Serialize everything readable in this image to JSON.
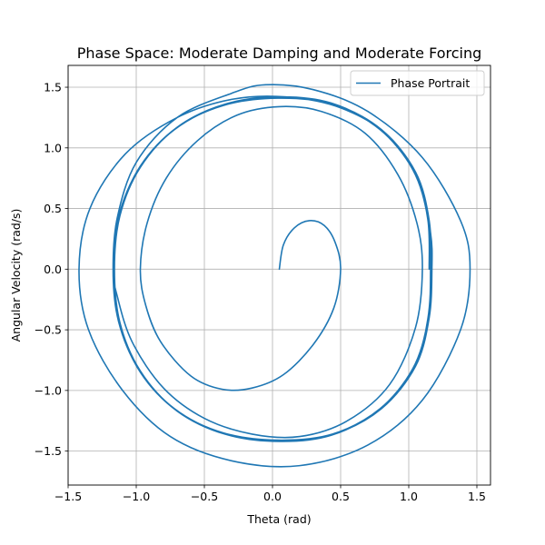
{
  "chart_data": {
    "type": "line",
    "title": "Phase Space: Moderate Damping and Moderate Forcing",
    "xlabel": "Theta (rad)",
    "ylabel": "Angular Velocity (rad/s)",
    "xlim": [
      -1.5,
      1.6
    ],
    "ylim": [
      -1.78,
      1.68
    ],
    "xticks": [
      -1.5,
      -1.0,
      -0.5,
      0.0,
      0.5,
      1.0,
      1.5
    ],
    "xtick_labels": [
      "−1.5",
      "−1.0",
      "−0.5",
      "0.0",
      "0.5",
      "1.0",
      "1.5"
    ],
    "yticks": [
      -1.5,
      -1.0,
      -0.5,
      0.0,
      0.5,
      1.0,
      1.5
    ],
    "ytick_labels": [
      "−1.5",
      "−1.0",
      "−0.5",
      "0.0",
      "0.5",
      "1.0",
      "1.5"
    ],
    "grid": true,
    "legend_position": "top-right",
    "color": "#1f77b4",
    "series": [
      {
        "name": "Phase Portrait",
        "points": [
          [
            0.05,
            0.0
          ],
          [
            0.08,
            0.2
          ],
          [
            0.16,
            0.34
          ],
          [
            0.27,
            0.4
          ],
          [
            0.38,
            0.36
          ],
          [
            0.46,
            0.22
          ],
          [
            0.5,
            0.0
          ],
          [
            0.45,
            -0.32
          ],
          [
            0.3,
            -0.62
          ],
          [
            0.08,
            -0.87
          ],
          [
            -0.15,
            -0.98
          ],
          [
            -0.37,
            -0.99
          ],
          [
            -0.6,
            -0.88
          ],
          [
            -0.82,
            -0.6
          ],
          [
            -0.93,
            -0.3
          ],
          [
            -0.97,
            0.0
          ],
          [
            -0.92,
            0.38
          ],
          [
            -0.78,
            0.75
          ],
          [
            -0.55,
            1.06
          ],
          [
            -0.26,
            1.27
          ],
          [
            0.05,
            1.34
          ],
          [
            0.36,
            1.3
          ],
          [
            0.68,
            1.12
          ],
          [
            0.92,
            0.78
          ],
          [
            1.06,
            0.38
          ],
          [
            1.1,
            0.0
          ],
          [
            1.05,
            -0.48
          ],
          [
            0.86,
            -0.95
          ],
          [
            0.55,
            -1.25
          ],
          [
            0.2,
            -1.38
          ],
          [
            -0.15,
            -1.36
          ],
          [
            -0.5,
            -1.23
          ],
          [
            -0.8,
            -0.98
          ],
          [
            -1.03,
            -0.6
          ],
          [
            -1.14,
            -0.22
          ],
          [
            -1.17,
            0.0
          ],
          [
            -1.14,
            0.42
          ],
          [
            -1.0,
            0.88
          ],
          [
            -0.7,
            1.25
          ],
          [
            -0.3,
            1.45
          ],
          [
            -0.05,
            1.52
          ],
          [
            0.3,
            1.48
          ],
          [
            0.7,
            1.3
          ],
          [
            1.1,
            0.92
          ],
          [
            1.38,
            0.4
          ],
          [
            1.45,
            0.0
          ],
          [
            1.38,
            -0.5
          ],
          [
            1.1,
            -1.08
          ],
          [
            0.7,
            -1.45
          ],
          [
            0.2,
            -1.62
          ],
          [
            -0.3,
            -1.58
          ],
          [
            -0.75,
            -1.38
          ],
          [
            -1.1,
            -1.0
          ],
          [
            -1.35,
            -0.5
          ],
          [
            -1.42,
            0.0
          ],
          [
            -1.34,
            0.5
          ],
          [
            -1.08,
            0.95
          ],
          [
            -0.7,
            1.25
          ],
          [
            -0.3,
            1.4
          ],
          [
            0.1,
            1.42
          ],
          [
            0.5,
            1.33
          ],
          [
            0.85,
            1.1
          ],
          [
            1.08,
            0.72
          ],
          [
            1.16,
            0.3
          ],
          [
            1.17,
            0.0
          ],
          [
            1.15,
            -0.4
          ],
          [
            1.05,
            -0.8
          ],
          [
            0.8,
            -1.15
          ],
          [
            0.45,
            -1.36
          ],
          [
            0.05,
            -1.42
          ],
          [
            -0.35,
            -1.36
          ],
          [
            -0.7,
            -1.17
          ],
          [
            -0.97,
            -0.85
          ],
          [
            -1.12,
            -0.45
          ],
          [
            -1.16,
            0.0
          ],
          [
            -1.12,
            0.45
          ],
          [
            -0.97,
            0.85
          ],
          [
            -0.7,
            1.17
          ],
          [
            -0.35,
            1.36
          ],
          [
            0.05,
            1.42
          ],
          [
            0.45,
            1.36
          ],
          [
            0.8,
            1.15
          ],
          [
            1.05,
            0.8
          ],
          [
            1.15,
            0.4
          ],
          [
            1.16,
            0.0
          ],
          [
            1.14,
            -0.42
          ],
          [
            1.03,
            -0.82
          ],
          [
            0.78,
            -1.16
          ],
          [
            0.43,
            -1.37
          ],
          [
            0.03,
            -1.42
          ],
          [
            -0.37,
            -1.35
          ],
          [
            -0.72,
            -1.15
          ],
          [
            -0.98,
            -0.83
          ],
          [
            -1.13,
            -0.43
          ],
          [
            -1.17,
            0.0
          ],
          [
            -1.13,
            0.43
          ],
          [
            -0.98,
            0.83
          ],
          [
            -0.72,
            1.15
          ],
          [
            -0.37,
            1.35
          ],
          [
            0.03,
            1.42
          ],
          [
            0.43,
            1.37
          ],
          [
            0.78,
            1.16
          ],
          [
            1.03,
            0.82
          ],
          [
            1.14,
            0.42
          ],
          [
            1.16,
            0.0
          ],
          [
            1.14,
            -0.41
          ],
          [
            1.04,
            -0.81
          ],
          [
            0.79,
            -1.15
          ],
          [
            0.44,
            -1.36
          ],
          [
            0.04,
            -1.41
          ],
          [
            -0.36,
            -1.35
          ],
          [
            -0.71,
            -1.16
          ],
          [
            -0.97,
            -0.84
          ],
          [
            -1.12,
            -0.44
          ],
          [
            -1.16,
            0.0
          ],
          [
            -1.12,
            0.44
          ],
          [
            -0.97,
            0.84
          ],
          [
            -0.71,
            1.16
          ],
          [
            -0.36,
            1.35
          ],
          [
            0.04,
            1.41
          ],
          [
            0.44,
            1.36
          ],
          [
            0.79,
            1.15
          ],
          [
            1.04,
            0.81
          ],
          [
            1.14,
            0.41
          ],
          [
            1.15,
            0.0
          ]
        ]
      }
    ]
  }
}
